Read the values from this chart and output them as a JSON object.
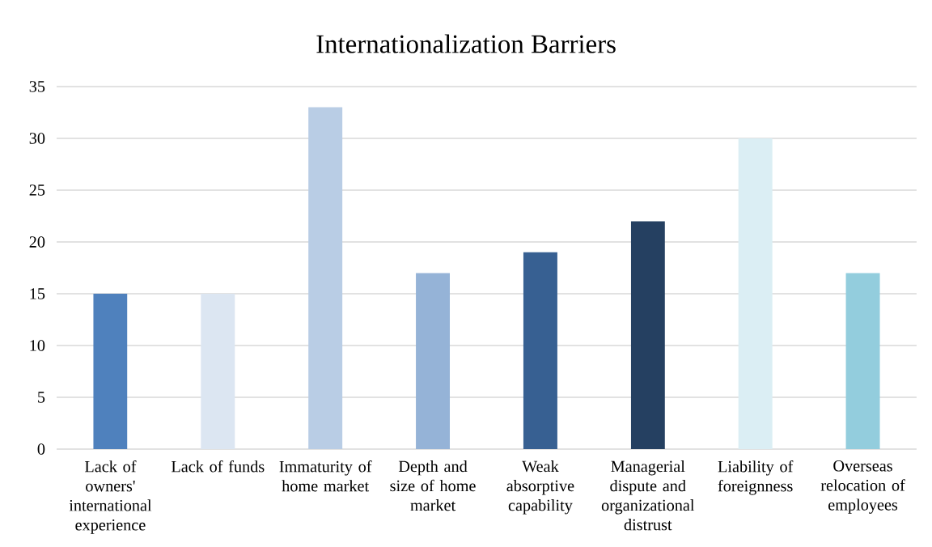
{
  "chart_data": {
    "type": "bar",
    "title": "Internationalization Barriers",
    "categories": [
      "Lack of owners' international experience",
      "Lack of funds",
      "Immaturity of home market",
      "Depth and size of home market",
      "Weak absorptive capability",
      "Managerial dispute and organizational distrust",
      "Liability of foreignness",
      "Overseas relocation of employees"
    ],
    "values": [
      15,
      15,
      33,
      17,
      19,
      22,
      30,
      17
    ],
    "colors": [
      "#4f81bd",
      "#dce6f2",
      "#b9cde5",
      "#95b3d7",
      "#376092",
      "#254061",
      "#dbeef4",
      "#93cddd"
    ],
    "ylim": [
      0,
      35
    ],
    "yticks": [
      0,
      5,
      10,
      15,
      20,
      25,
      30,
      35
    ],
    "grid": "y"
  }
}
